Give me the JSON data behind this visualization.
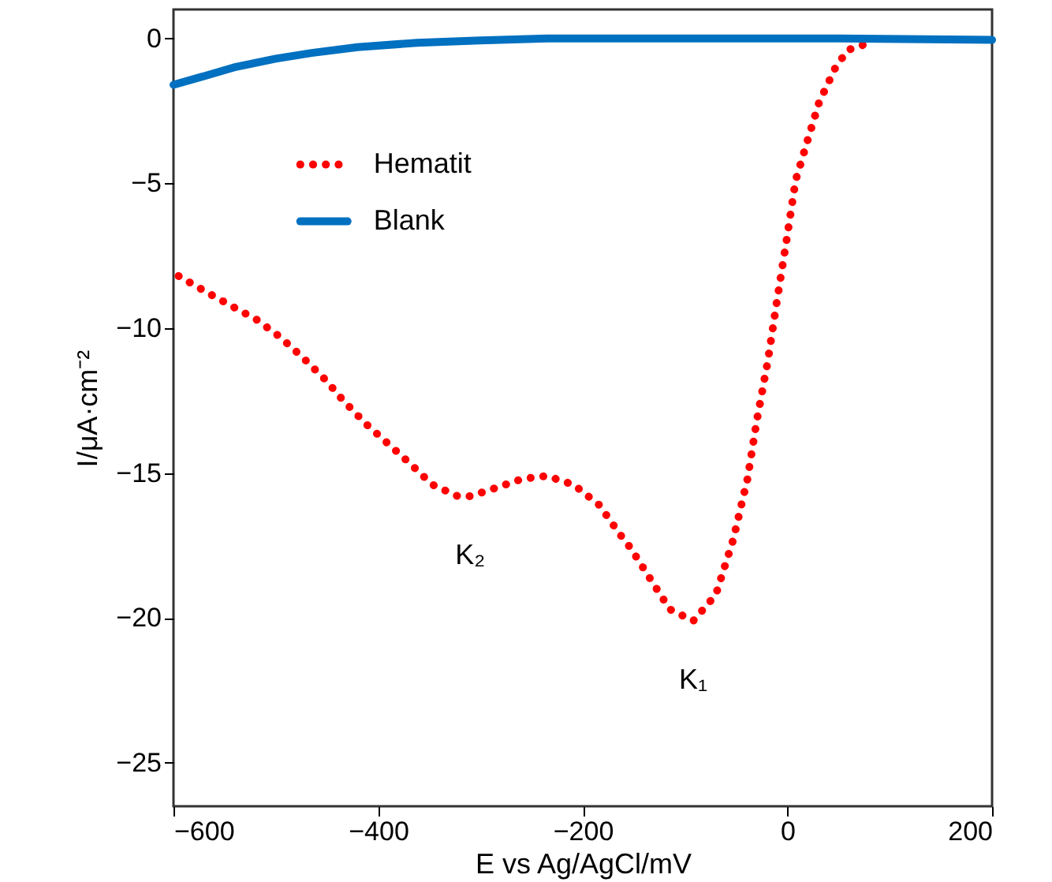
{
  "chart_data": {
    "type": "line",
    "xlabel": "E vs Ag/AgCl/mV",
    "ylabel": "I/μA·cm⁻²",
    "xlim": [
      -600,
      200
    ],
    "xticks": [
      -600,
      -400,
      -200,
      0,
      200
    ],
    "ylim": [
      -26.5,
      1
    ],
    "yticks": [
      -25,
      -20,
      -15,
      -10,
      -5,
      0
    ],
    "grid": false,
    "legend": "top left",
    "annotations": [
      {
        "text": "K₂",
        "x": -310,
        "y": -15.8
      },
      {
        "text": "K₁",
        "x": -92,
        "y": -20.1
      }
    ],
    "series": [
      {
        "name": "Hematit",
        "color": "#ff0000",
        "line_style": "dotted",
        "x": [
          -595,
          -568,
          -545,
          -519,
          -496,
          -474,
          -451,
          -434,
          -412,
          -393,
          -371,
          -347,
          -322,
          -310,
          -284,
          -259,
          -235,
          -209,
          -184,
          -164,
          -153,
          -135,
          -115,
          -92,
          -70,
          -53,
          -39,
          -30,
          -19,
          -10,
          -1,
          8,
          19,
          31,
          47,
          59,
          76
        ],
        "values": [
          -8.2,
          -8.75,
          -9.2,
          -9.7,
          -10.3,
          -11.0,
          -11.8,
          -12.5,
          -13.3,
          -13.9,
          -14.6,
          -15.4,
          -15.8,
          -15.8,
          -15.5,
          -15.2,
          -15.1,
          -15.4,
          -16.1,
          -17.1,
          -17.6,
          -18.6,
          -19.7,
          -20.1,
          -19.2,
          -17.3,
          -15.2,
          -13.2,
          -11.1,
          -9.0,
          -7.0,
          -4.9,
          -3.6,
          -2.2,
          -1.0,
          -0.4,
          -0.2
        ]
      },
      {
        "name": "Blank",
        "color": "#0070c0",
        "line_style": "solid",
        "x": [
          -600,
          -570,
          -541,
          -500,
          -465,
          -420,
          -362,
          -300,
          -235,
          -150,
          -50,
          50,
          200
        ],
        "values": [
          -1.6,
          -1.3,
          -1.0,
          -0.7,
          -0.5,
          -0.3,
          -0.15,
          -0.07,
          0,
          0,
          0,
          0,
          -0.05
        ]
      }
    ]
  }
}
